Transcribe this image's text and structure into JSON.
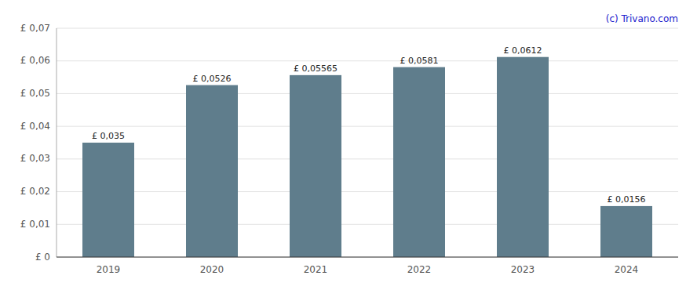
{
  "chart_data": {
    "type": "bar",
    "categories": [
      "2019",
      "2020",
      "2021",
      "2022",
      "2023",
      "2024"
    ],
    "values": [
      0.035,
      0.0526,
      0.05565,
      0.0581,
      0.0612,
      0.0156
    ],
    "value_labels": [
      "£ 0,035",
      "£ 0,0526",
      "£ 0,05565",
      "£ 0,0581",
      "£ 0,0612",
      "£ 0,0156"
    ],
    "data_labels": true,
    "color": "#5f7d8c",
    "ylim": [
      0,
      0.07
    ],
    "yticks": [
      {
        "value": 0,
        "label": "£ 0"
      },
      {
        "value": 0.01,
        "label": "£ 0,01"
      },
      {
        "value": 0.02,
        "label": "£ 0,02"
      },
      {
        "value": 0.03,
        "label": "£ 0,03"
      },
      {
        "value": 0.04,
        "label": "£ 0,04"
      },
      {
        "value": 0.05,
        "label": "£ 0,05"
      },
      {
        "value": 0.06,
        "label": "£ 0,06"
      },
      {
        "value": 0.07,
        "label": "£ 0,07"
      }
    ],
    "grid": true,
    "annotations": [
      "(c) Trivano.com"
    ]
  }
}
